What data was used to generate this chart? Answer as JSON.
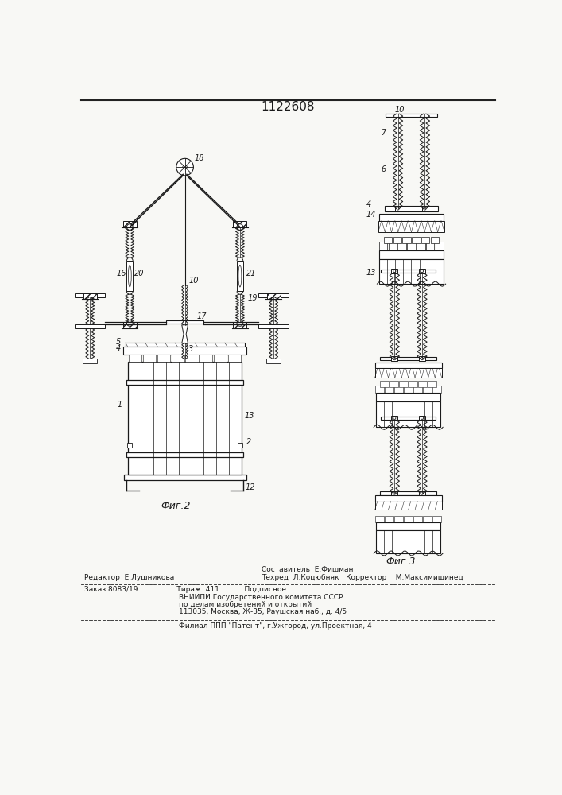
{
  "patent_number": "1122608",
  "fig2_label": "Фиг.2",
  "fig3_label": "Фиг.3",
  "editor_line": "Редактор  Е.Лушникова",
  "composer_line": "Составитель  Е.Фишман",
  "techred_line": "Техред  Л.Коцюбняк   Корректор    М.Максимишинец",
  "order_line": "Заказ 8083/19                 Тираж  411           Подписное",
  "vniip_line1": "ВНИИПИ Государственного комитета СССР",
  "vniip_line2": "по делам изобретений и открытий",
  "vniip_line3": "113035, Москва, Ж-35, Раушская наб., д. 4/5",
  "filial_line": "Филиал ППП \"Патент\", г.Ужгород, ул.Проектная, 4",
  "bg_color": "#f8f8f5",
  "text_color": "#1a1a1a",
  "line_color": "#222222",
  "drawing_color": "#1a1a1a"
}
